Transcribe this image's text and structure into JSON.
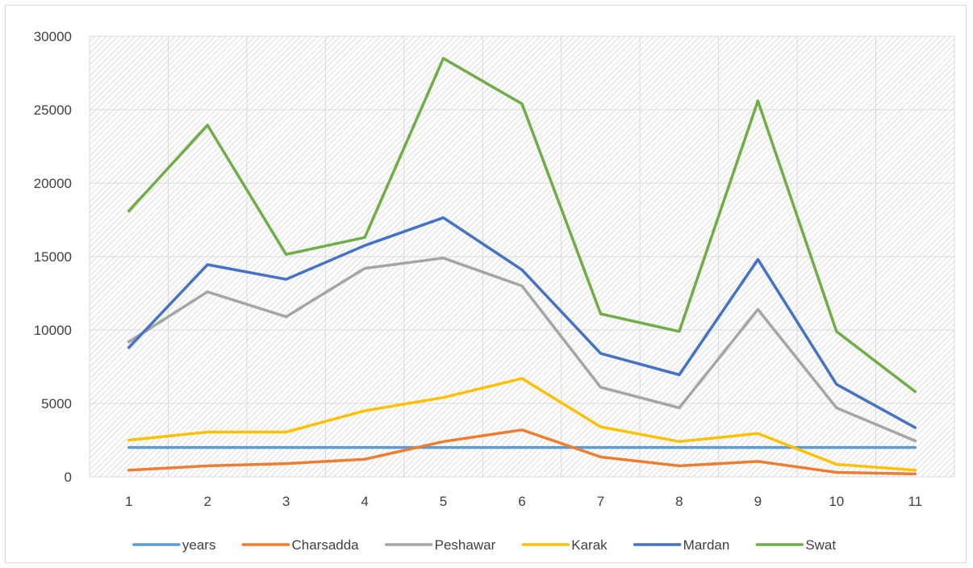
{
  "chart_data": {
    "type": "line",
    "title": "",
    "xlabel": "",
    "ylabel": "",
    "categories": [
      "1",
      "2",
      "3",
      "4",
      "5",
      "6",
      "7",
      "8",
      "9",
      "10",
      "11"
    ],
    "ylim": [
      0,
      30000
    ],
    "yticks": [
      "0",
      "5000",
      "10000",
      "15000",
      "20000",
      "25000",
      "30000"
    ],
    "grid": true,
    "legend_position": "bottom",
    "series": [
      {
        "name": "years",
        "color": "#5B9BD5",
        "values": [
          2000,
          2000,
          2000,
          2000,
          2000,
          2000,
          2000,
          2000,
          2000,
          2000,
          2000
        ]
      },
      {
        "name": "Charsadda",
        "color": "#ED7D31",
        "values": [
          450,
          750,
          900,
          1200,
          2400,
          3200,
          1350,
          750,
          1050,
          300,
          200
        ]
      },
      {
        "name": "Peshawar",
        "color": "#A5A5A5",
        "values": [
          9200,
          12600,
          10900,
          14200,
          14900,
          13000,
          6100,
          4700,
          11400,
          4700,
          2450
        ]
      },
      {
        "name": "Karak",
        "color": "#FFC000",
        "values": [
          2500,
          3050,
          3050,
          4500,
          5400,
          6700,
          3400,
          2400,
          2950,
          850,
          450
        ]
      },
      {
        "name": "Mardan",
        "color": "#4472C4",
        "values": [
          8800,
          14450,
          13450,
          15750,
          17650,
          14100,
          8400,
          6950,
          14800,
          6300,
          3350
        ]
      },
      {
        "name": "Swat",
        "color": "#70AD47",
        "values": [
          18100,
          23950,
          15150,
          16300,
          28500,
          25400,
          11100,
          9900,
          25600,
          9900,
          5800
        ]
      }
    ]
  }
}
